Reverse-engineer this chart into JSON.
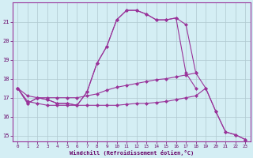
{
  "xlabel": "Windchill (Refroidissement éolien,°C)",
  "background_color": "#d4eef4",
  "grid_color": "#b0c8d0",
  "line_color": "#993399",
  "x": [
    0,
    1,
    2,
    3,
    4,
    5,
    6,
    7,
    8,
    9,
    10,
    11,
    12,
    13,
    14,
    15,
    16,
    17,
    18,
    19,
    20,
    21,
    22,
    23
  ],
  "curve1": [
    17.5,
    16.7,
    17.0,
    16.9,
    16.7,
    16.7,
    16.6,
    17.3,
    18.8,
    19.7,
    21.1,
    21.6,
    21.6,
    21.4,
    21.1,
    21.1,
    21.2,
    20.85,
    18.3,
    17.5,
    16.3,
    15.2,
    15.05,
    14.8
  ],
  "curve2": [
    17.5,
    16.7,
    17.0,
    16.9,
    16.7,
    16.7,
    16.6,
    17.3,
    18.8,
    19.7,
    21.1,
    21.6,
    21.6,
    21.4,
    21.1,
    21.1,
    21.2,
    18.3,
    17.5,
    null,
    null,
    null,
    null,
    null
  ],
  "curve3": [
    17.5,
    17.1,
    17.0,
    17.0,
    17.0,
    17.0,
    17.0,
    17.1,
    17.2,
    17.4,
    17.55,
    17.65,
    17.75,
    17.85,
    17.95,
    18.0,
    18.1,
    18.2,
    18.3,
    null,
    null,
    null,
    null,
    null
  ],
  "curve4": [
    17.5,
    16.8,
    16.7,
    16.6,
    16.6,
    16.6,
    16.6,
    16.6,
    16.6,
    16.6,
    16.6,
    16.65,
    16.7,
    16.7,
    16.75,
    16.8,
    16.9,
    17.0,
    17.1,
    17.5,
    16.3,
    15.2,
    15.05,
    14.8
  ],
  "ylim_min": 14.7,
  "ylim_max": 22.0,
  "xlim_min": -0.5,
  "xlim_max": 23.5,
  "yticks": [
    15,
    16,
    17,
    18,
    19,
    20,
    21
  ],
  "xticks": [
    0,
    1,
    2,
    3,
    4,
    5,
    6,
    7,
    8,
    9,
    10,
    11,
    12,
    13,
    14,
    15,
    16,
    17,
    18,
    19,
    20,
    21,
    22,
    23
  ]
}
